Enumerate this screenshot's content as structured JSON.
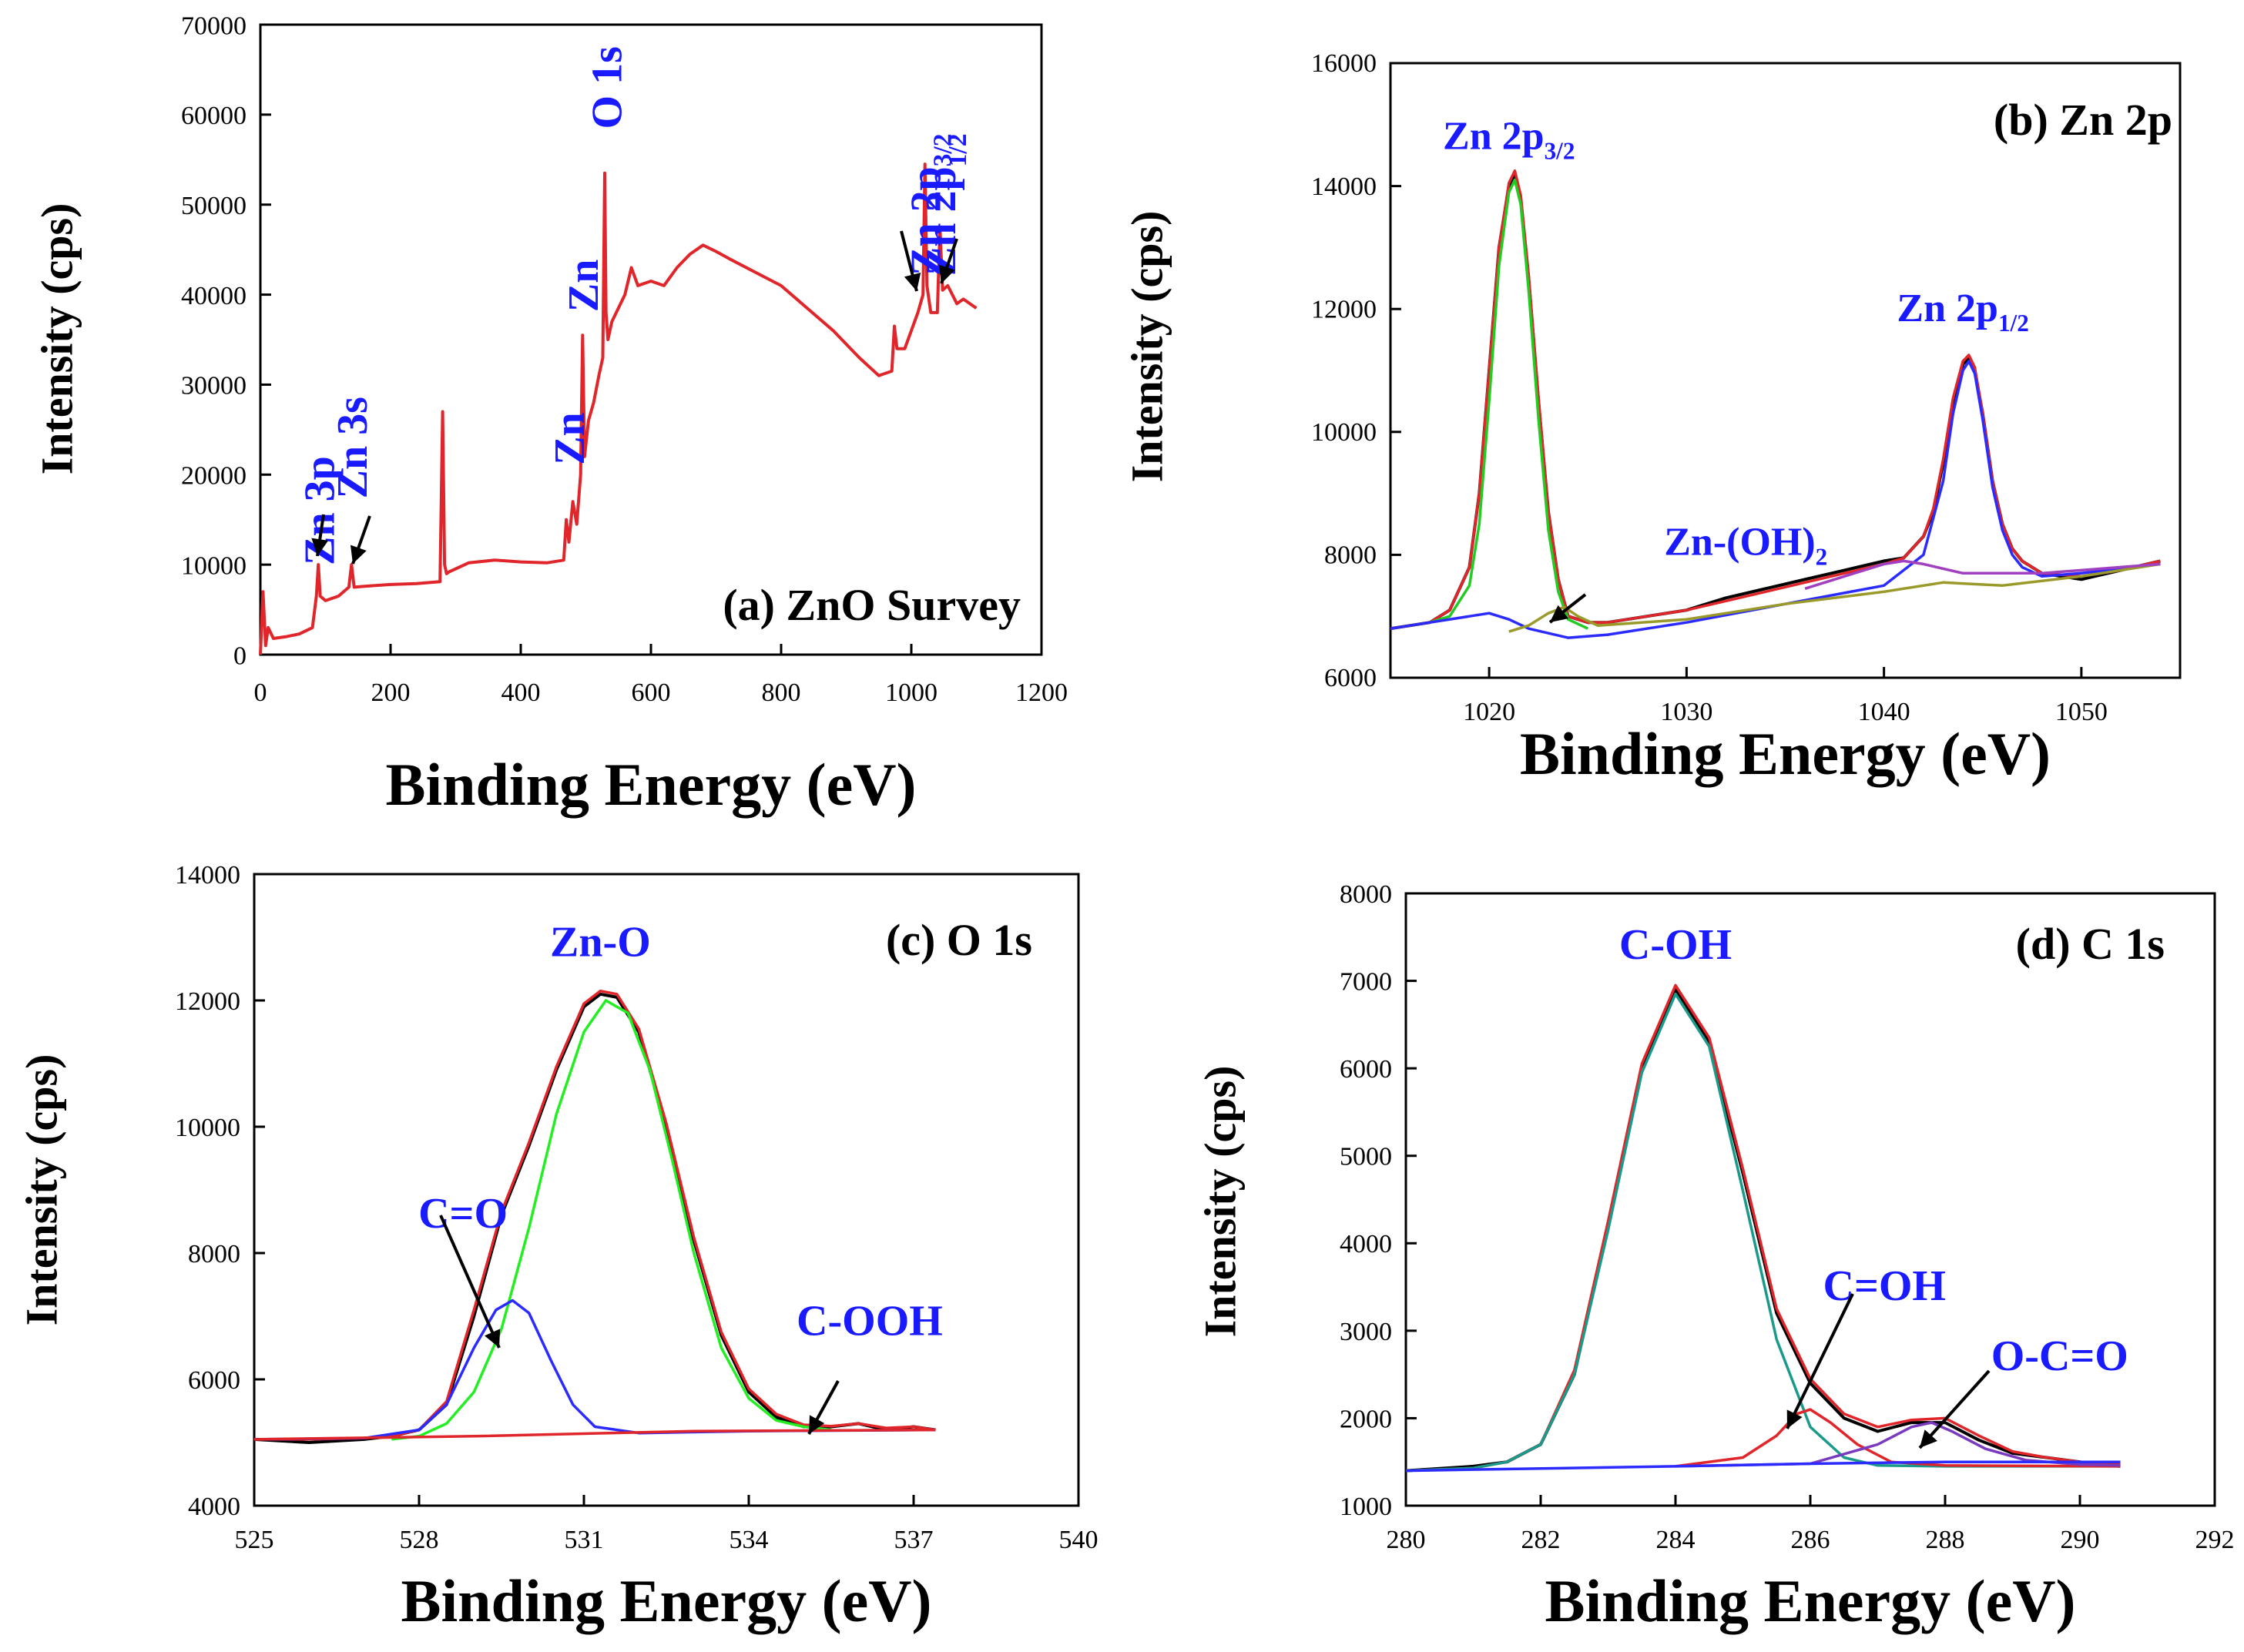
{
  "chart_data": [
    {
      "type": "line",
      "panel_label": "(a) ZnO Survey",
      "xlabel": "Binding Energy (eV)",
      "ylabel": "Intensity (cps)",
      "xlim": [
        0,
        1200
      ],
      "ylim": [
        0,
        70000
      ],
      "xticks": [
        0,
        200,
        400,
        600,
        800,
        1000,
        1200
      ],
      "yticks": [
        0,
        10000,
        20000,
        30000,
        40000,
        50000,
        60000,
        70000
      ],
      "series": [
        {
          "color": "#e0262a",
          "x": [
            0,
            4,
            8,
            12,
            20,
            40,
            60,
            80,
            86,
            89,
            92,
            100,
            120,
            136,
            140,
            144,
            160,
            200,
            240,
            276,
            280,
            283,
            286,
            290,
            320,
            360,
            400,
            440,
            466,
            470,
            474,
            480,
            486,
            492,
            495,
            498,
            504,
            512,
            520,
            526,
            529,
            531,
            534,
            540,
            560,
            570,
            580,
            600,
            620,
            640,
            660,
            680,
            700,
            720,
            760,
            800,
            840,
            880,
            920,
            950,
            970,
            974,
            978,
            990,
            1000,
            1010,
            1018,
            1021,
            1024,
            1030,
            1040,
            1044,
            1048,
            1056,
            1070,
            1080,
            1090,
            1100
          ],
          "y": [
            0,
            7000,
            1000,
            3000,
            1800,
            2000,
            2300,
            3000,
            6500,
            10000,
            6500,
            6000,
            6500,
            7500,
            10000,
            7500,
            7600,
            7800,
            7900,
            8100,
            27000,
            10000,
            9000,
            9200,
            10200,
            10500,
            10300,
            10200,
            10500,
            15000,
            12500,
            17000,
            14500,
            20000,
            35500,
            22000,
            26000,
            28000,
            31000,
            33000,
            53500,
            38000,
            35000,
            37000,
            40000,
            43000,
            41000,
            41500,
            41000,
            43000,
            44500,
            45500,
            44800,
            44000,
            42500,
            41000,
            38500,
            36000,
            33000,
            31000,
            31500,
            36500,
            34000,
            34000,
            36000,
            38000,
            40000,
            54500,
            41000,
            38000,
            38000,
            47500,
            40500,
            41000,
            39000,
            39500,
            39000,
            38500
          ]
        }
      ],
      "annotations": [
        {
          "text": "Zn 3p",
          "x": 90,
          "y": 16000
        },
        {
          "text": "Zn 3s",
          "x": 140,
          "y": 23000
        },
        {
          "text": "Zn",
          "x": 474,
          "y": 24000
        },
        {
          "text": "Zn",
          "x": 495,
          "y": 41000
        },
        {
          "text": "O 1s",
          "x": 531,
          "y": 63000
        },
        {
          "text": "Zn 2p",
          "sub": "3/2",
          "x": 1021,
          "y": 50000
        },
        {
          "text": "Zn 2p",
          "sub": "1/2",
          "x": 1044,
          "y": 50000
        }
      ]
    },
    {
      "type": "line",
      "panel_label": "(b) Zn 2p",
      "xlabel": "Binding Energy (eV)",
      "ylabel": "Intensity (cps)",
      "xlim": [
        1015,
        1055
      ],
      "ylim": [
        6000,
        16000
      ],
      "xticks": [
        1020,
        1030,
        1040,
        1050
      ],
      "yticks": [
        6000,
        8000,
        10000,
        12000,
        14000,
        16000
      ],
      "series": [
        {
          "color": "#000000",
          "x": [
            1015,
            1017,
            1018,
            1019,
            1019.5,
            1020,
            1020.5,
            1021,
            1021.3,
            1021.6,
            1022,
            1022.5,
            1023,
            1023.5,
            1024,
            1025,
            1026,
            1028,
            1030,
            1032,
            1034,
            1036,
            1038,
            1040,
            1041,
            1042,
            1042.5,
            1043,
            1043.5,
            1044,
            1044.3,
            1044.6,
            1045,
            1045.5,
            1046,
            1046.5,
            1047,
            1048,
            1050,
            1052,
            1054
          ],
          "y": [
            6800,
            6900,
            7100,
            7800,
            9000,
            11000,
            13000,
            14000,
            14200,
            13800,
            12500,
            10500,
            8700,
            7600,
            7000,
            6900,
            6900,
            7000,
            7100,
            7300,
            7450,
            7600,
            7750,
            7900,
            7950,
            8300,
            8700,
            9500,
            10500,
            11100,
            11200,
            11000,
            10300,
            9200,
            8500,
            8100,
            7900,
            7700,
            7600,
            7750,
            7900
          ]
        },
        {
          "color": "#e0262a",
          "x": [
            1015,
            1017,
            1018,
            1019,
            1019.5,
            1020,
            1020.5,
            1021,
            1021.3,
            1021.6,
            1022,
            1022.5,
            1023,
            1023.5,
            1024,
            1025,
            1026,
            1028,
            1030,
            1032,
            1034,
            1036,
            1038,
            1040,
            1041,
            1042,
            1042.5,
            1043,
            1043.5,
            1044,
            1044.3,
            1044.6,
            1045,
            1045.5,
            1046,
            1046.5,
            1047,
            1048,
            1050,
            1052,
            1054
          ],
          "y": [
            6800,
            6900,
            7100,
            7800,
            9000,
            11000,
            13000,
            14050,
            14250,
            13850,
            12550,
            10550,
            8700,
            7600,
            7000,
            6900,
            6900,
            7000,
            7100,
            7250,
            7400,
            7550,
            7700,
            7850,
            7950,
            8300,
            8750,
            9550,
            10550,
            11150,
            11250,
            11050,
            10300,
            9200,
            8500,
            8100,
            7900,
            7700,
            7650,
            7750,
            7900
          ]
        },
        {
          "color": "#22cc22",
          "x": [
            1017,
            1018,
            1019,
            1019.5,
            1020,
            1020.5,
            1021,
            1021.3,
            1021.6,
            1022,
            1022.5,
            1023,
            1023.5,
            1024,
            1025
          ],
          "y": [
            6900,
            7000,
            7500,
            8500,
            10500,
            12700,
            13900,
            14100,
            13700,
            12300,
            10200,
            8400,
            7400,
            6950,
            6800
          ]
        },
        {
          "color": "#2b2bff",
          "x": [
            1015,
            1017,
            1019,
            1020,
            1021,
            1022,
            1024,
            1026,
            1030,
            1035,
            1040,
            1042,
            1043,
            1043.5,
            1044,
            1044.3,
            1044.6,
            1045,
            1045.5,
            1046,
            1046.5,
            1047,
            1048,
            1050,
            1054
          ],
          "y": [
            6800,
            6900,
            7000,
            7050,
            6950,
            6800,
            6650,
            6700,
            6900,
            7200,
            7500,
            8000,
            9200,
            10300,
            11000,
            11150,
            10950,
            10200,
            9100,
            8400,
            8000,
            7800,
            7650,
            7700,
            7850
          ]
        },
        {
          "color": "#9a9a2a",
          "x": [
            1021,
            1022,
            1023,
            1023.8,
            1024.5,
            1025.5,
            1030,
            1035,
            1040,
            1043,
            1046,
            1050,
            1054
          ],
          "y": [
            6750,
            6850,
            7050,
            7150,
            7000,
            6850,
            6950,
            7200,
            7400,
            7550,
            7500,
            7650,
            7850
          ]
        },
        {
          "color": "#a040c0",
          "x": [
            1036,
            1038,
            1040,
            1041,
            1042,
            1044,
            1046,
            1048,
            1050,
            1052,
            1054
          ],
          "y": [
            7450,
            7650,
            7850,
            7900,
            7850,
            7700,
            7700,
            7700,
            7750,
            7800,
            7850
          ]
        }
      ],
      "annotations": [
        {
          "text": "Zn 2p",
          "sub": "3/2",
          "x": 1021,
          "y": 14600
        },
        {
          "text": "Zn 2p",
          "sub": "1/2",
          "x": 1044,
          "y": 11800
        },
        {
          "text": "Zn-(OH)",
          "sub": "2",
          "x": 1033,
          "y": 8000
        }
      ]
    },
    {
      "type": "line",
      "panel_label": "(c) O 1s",
      "xlabel": "Binding Energy (eV)",
      "ylabel": "Intensity (cps)",
      "xlim": [
        525,
        540
      ],
      "ylim": [
        4000,
        14000
      ],
      "xticks": [
        525,
        528,
        531,
        534,
        537,
        540
      ],
      "yticks": [
        4000,
        6000,
        8000,
        10000,
        12000,
        14000
      ],
      "series": [
        {
          "color": "#000000",
          "x": [
            525,
            526,
            527,
            527.5,
            528,
            528.5,
            529,
            529.5,
            530,
            530.5,
            531,
            531.3,
            531.6,
            532,
            532.5,
            533,
            533.5,
            534,
            534.5,
            535,
            535.5,
            536,
            536.5,
            537,
            537.4
          ],
          "y": [
            5050,
            5000,
            5050,
            5100,
            5200,
            5600,
            7000,
            8600,
            9700,
            10900,
            11900,
            12100,
            12050,
            11500,
            10000,
            8200,
            6700,
            5800,
            5400,
            5250,
            5250,
            5300,
            5200,
            5250,
            5200
          ]
        },
        {
          "color": "#e0262a",
          "x": [
            525,
            526,
            527,
            527.5,
            528,
            528.5,
            529,
            529.5,
            530,
            530.5,
            531,
            531.3,
            531.6,
            532,
            532.5,
            533,
            533.5,
            534,
            534.5,
            535,
            535.5,
            536,
            536.5,
            537,
            537.4
          ],
          "y": [
            5050,
            5050,
            5070,
            5100,
            5200,
            5650,
            7100,
            8650,
            9750,
            10950,
            11950,
            12150,
            12100,
            11550,
            10050,
            8250,
            6750,
            5850,
            5450,
            5280,
            5260,
            5300,
            5230,
            5250,
            5200
          ]
        },
        {
          "color": "#22ee22",
          "x": [
            527.5,
            528,
            528.5,
            529,
            529.5,
            530,
            530.5,
            531,
            531.4,
            531.8,
            532.2,
            532.6,
            533,
            533.5,
            534,
            534.5,
            535,
            535.5
          ],
          "y": [
            5050,
            5100,
            5300,
            5800,
            6800,
            8400,
            10200,
            11500,
            12000,
            11800,
            10900,
            9500,
            8000,
            6500,
            5700,
            5350,
            5250,
            5200
          ]
        },
        {
          "color": "#2b2bff",
          "x": [
            525,
            527,
            528,
            528.5,
            529,
            529.4,
            529.7,
            530,
            530.4,
            530.8,
            531.2,
            532,
            534,
            537.4
          ],
          "y": [
            5050,
            5070,
            5200,
            5600,
            6500,
            7100,
            7250,
            7050,
            6300,
            5600,
            5250,
            5150,
            5180,
            5200
          ]
        },
        {
          "color": "#e0262a",
          "x": [
            525,
            529,
            533,
            537.4
          ],
          "y": [
            5050,
            5100,
            5180,
            5200
          ]
        }
      ],
      "annotations": [
        {
          "text": "Zn-O",
          "x": 531.3,
          "y": 12700
        },
        {
          "text": "C=O",
          "x": 528.8,
          "y": 8400
        },
        {
          "text": "C-OOH",
          "x": 536.2,
          "y": 6700
        }
      ]
    },
    {
      "type": "line",
      "panel_label": "(d) C 1s",
      "xlabel": "Binding Energy (eV)",
      "ylabel": "Intensity (cps)",
      "xlim": [
        280,
        292
      ],
      "ylim": [
        1000,
        8000
      ],
      "xticks": [
        280,
        282,
        284,
        286,
        288,
        290,
        292
      ],
      "yticks": [
        1000,
        2000,
        3000,
        4000,
        5000,
        6000,
        7000,
        8000
      ],
      "series": [
        {
          "color": "#000000",
          "x": [
            280,
            281,
            281.5,
            282,
            282.5,
            283,
            283.5,
            284,
            284.5,
            285,
            285.5,
            286,
            286.5,
            287,
            287.5,
            288,
            288.5,
            289,
            289.5,
            290,
            290.6
          ],
          "y": [
            1400,
            1450,
            1500,
            1700,
            2500,
            4200,
            6000,
            6900,
            6300,
            4800,
            3200,
            2400,
            2000,
            1850,
            1950,
            1950,
            1750,
            1600,
            1550,
            1500,
            1450
          ]
        },
        {
          "color": "#e0262a",
          "x": [
            280,
            281,
            281.5,
            282,
            282.5,
            283,
            283.5,
            284,
            284.5,
            285,
            285.5,
            286,
            286.5,
            287,
            287.5,
            288,
            288.5,
            289,
            289.5,
            290,
            290.6
          ],
          "y": [
            1400,
            1430,
            1500,
            1700,
            2550,
            4250,
            6050,
            6950,
            6350,
            4850,
            3250,
            2450,
            2050,
            1900,
            1980,
            2000,
            1800,
            1620,
            1550,
            1500,
            1480
          ]
        },
        {
          "color": "#1a9a8a",
          "x": [
            280,
            281,
            281.5,
            282,
            282.5,
            283,
            283.5,
            284,
            284.5,
            285,
            285.5,
            286,
            286.5,
            287,
            288,
            290.6
          ],
          "y": [
            1400,
            1430,
            1500,
            1700,
            2500,
            4150,
            5950,
            6850,
            6250,
            4600,
            2900,
            1900,
            1550,
            1460,
            1450,
            1450
          ]
        },
        {
          "color": "#e0262a",
          "x": [
            284,
            285,
            285.5,
            285.8,
            286,
            286.3,
            286.7,
            287.2,
            288,
            290.6
          ],
          "y": [
            1450,
            1550,
            1800,
            2050,
            2100,
            1950,
            1700,
            1500,
            1460,
            1450
          ]
        },
        {
          "color": "#7a3ac0",
          "x": [
            284,
            286,
            287,
            287.5,
            287.8,
            288.1,
            288.6,
            289.2,
            290,
            290.6
          ],
          "y": [
            1450,
            1480,
            1700,
            1900,
            1950,
            1850,
            1650,
            1520,
            1470,
            1460
          ]
        },
        {
          "color": "#2b2bff",
          "x": [
            280,
            284,
            286,
            288,
            290.6
          ],
          "y": [
            1400,
            1450,
            1480,
            1500,
            1500
          ]
        }
      ],
      "annotations": [
        {
          "text": "C-OH",
          "x": 284,
          "y": 7250
        },
        {
          "text": "C=OH",
          "x": 287.1,
          "y": 3350
        },
        {
          "text": "O-C=O",
          "x": 289.7,
          "y": 2550
        }
      ]
    }
  ]
}
